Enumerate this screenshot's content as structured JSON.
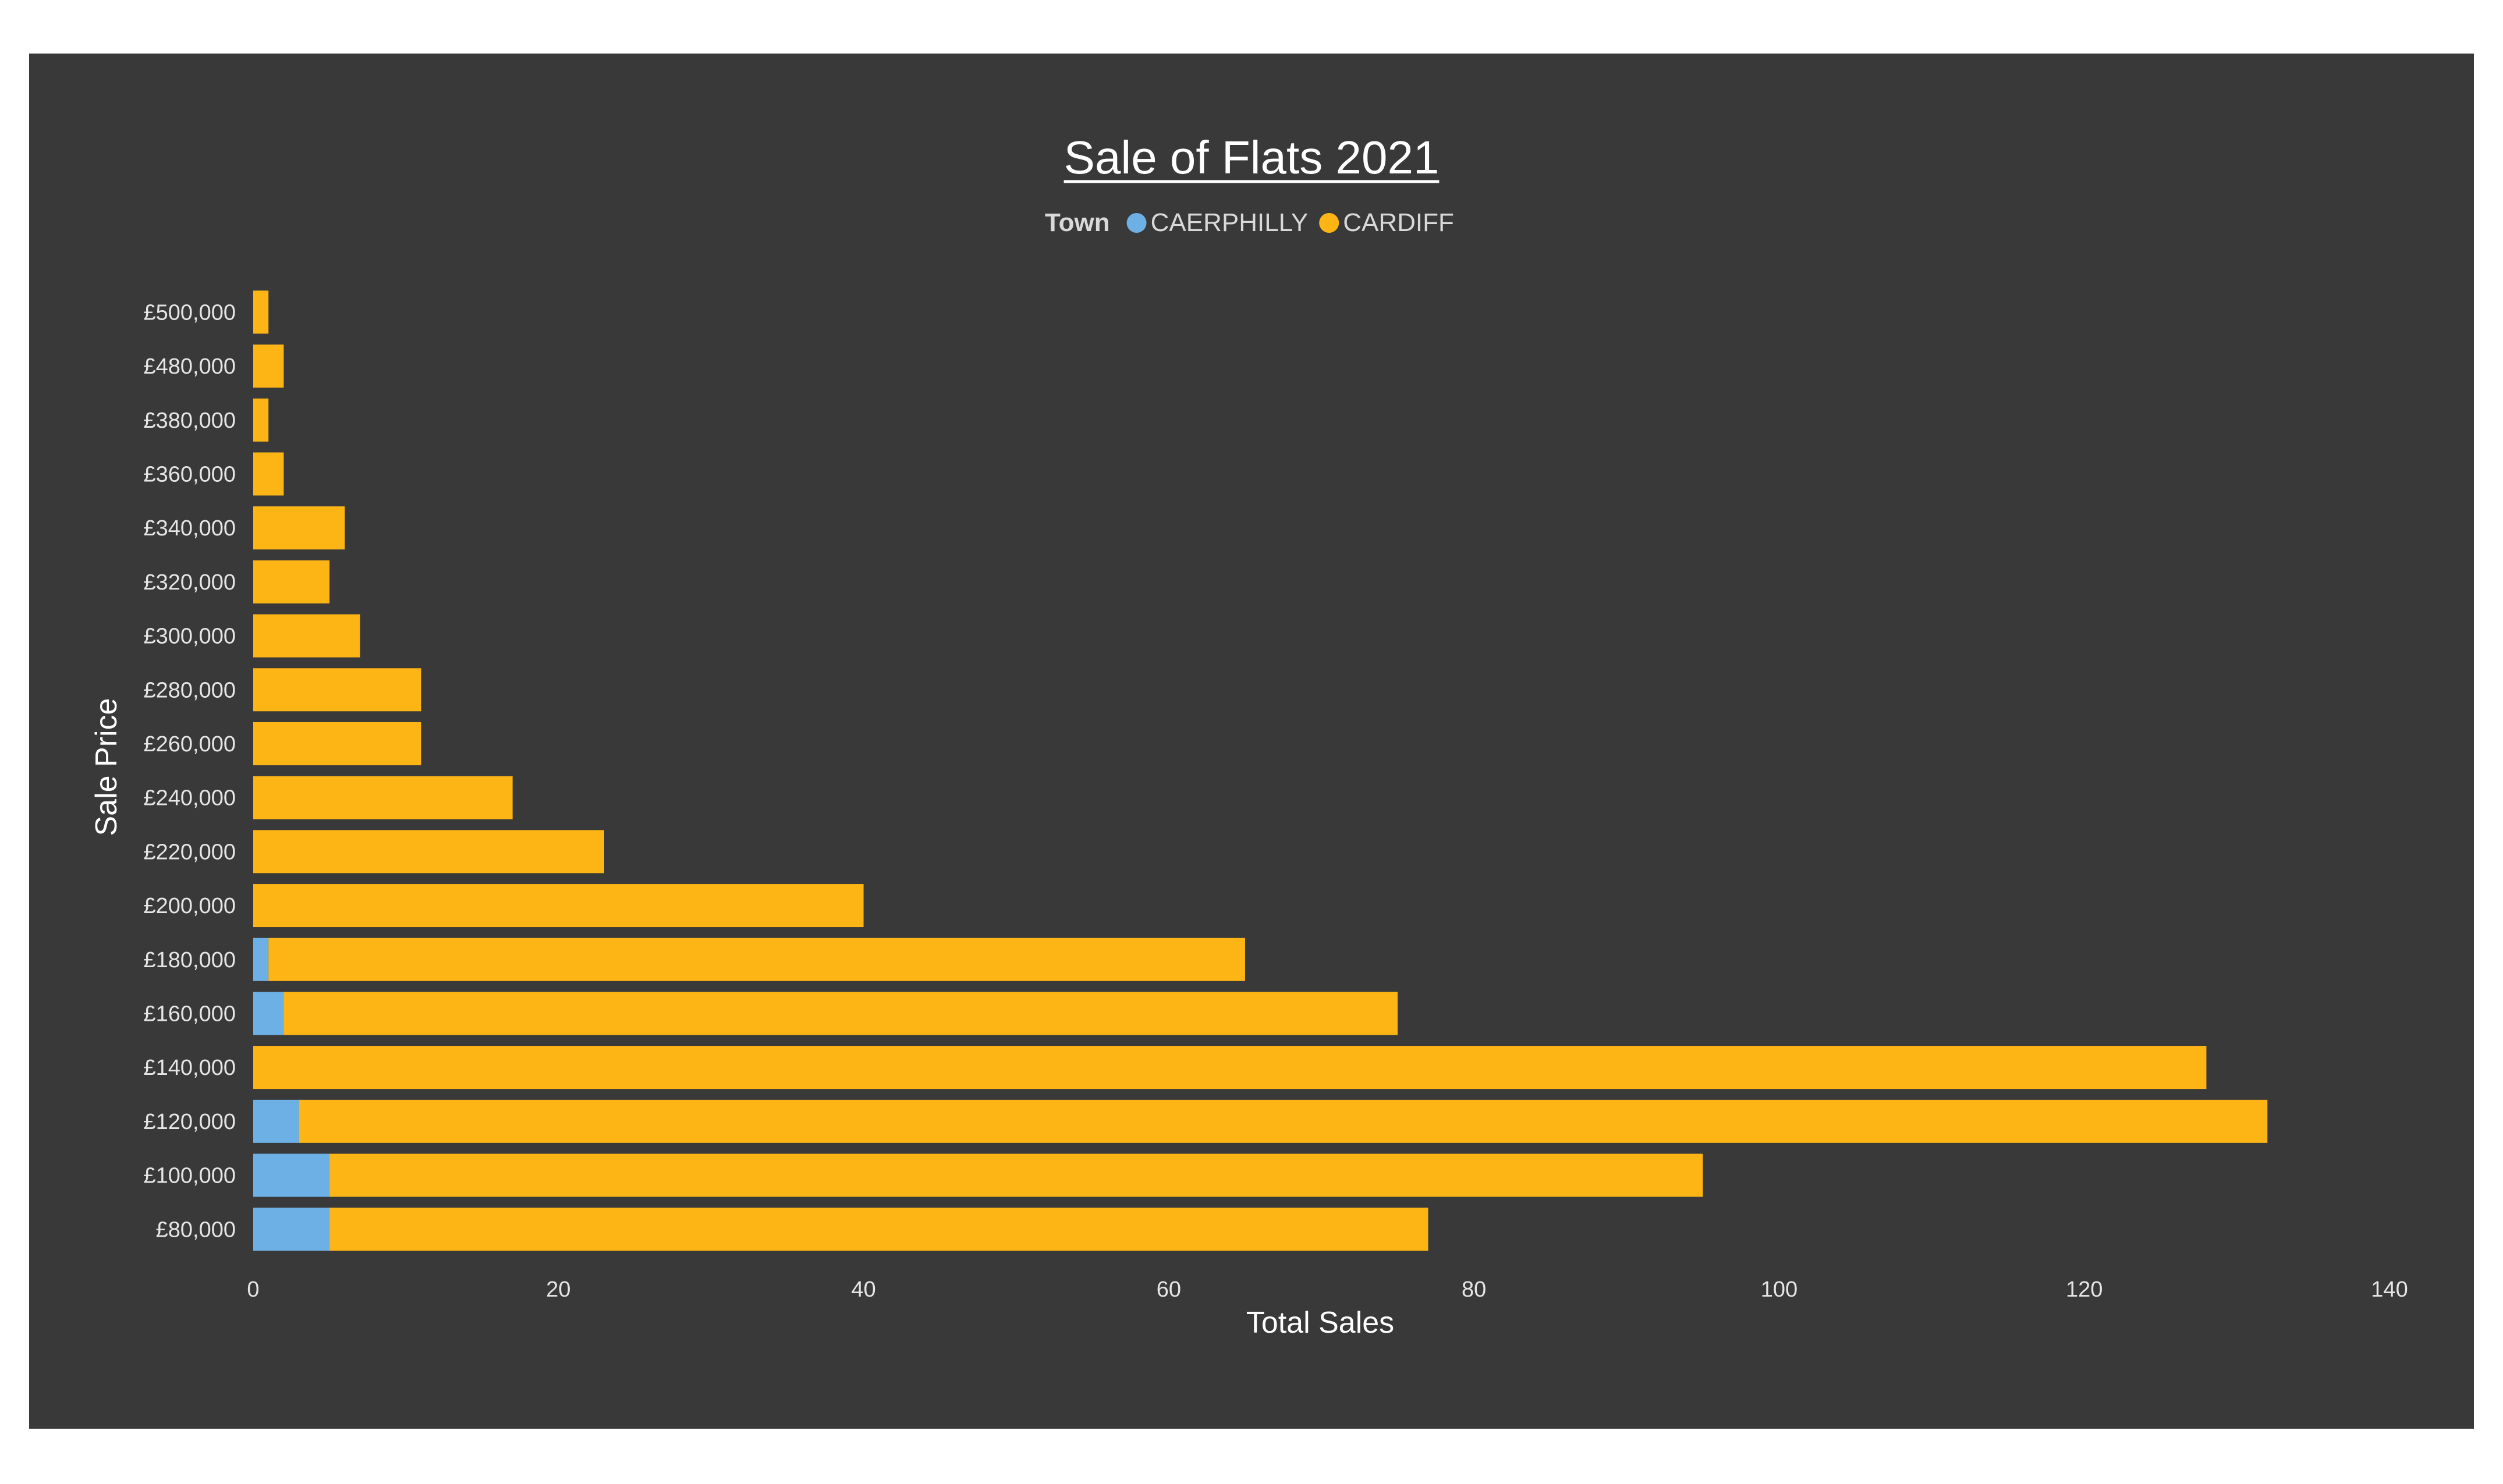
{
  "chart_data": {
    "type": "bar",
    "orientation": "horizontal",
    "stacked": true,
    "title": "Sale of Flats 2021",
    "xlabel": "Total Sales",
    "ylabel": "Sale Price",
    "xlim": [
      0,
      140
    ],
    "x_ticks": [
      "0",
      "20",
      "40",
      "60",
      "80",
      "100",
      "120",
      "140"
    ],
    "x_tick_values": [
      0,
      20,
      40,
      60,
      80,
      100,
      120,
      140
    ],
    "grid": false,
    "legend": {
      "title": "Town",
      "placement": "top-center"
    },
    "categories": [
      "£500,000",
      "£480,000",
      "£380,000",
      "£360,000",
      "£340,000",
      "£320,000",
      "£300,000",
      "£280,000",
      "£260,000",
      "£240,000",
      "£220,000",
      "£200,000",
      "£180,000",
      "£160,000",
      "£140,000",
      "£120,000",
      "£100,000",
      "£80,000"
    ],
    "series": [
      {
        "name": "CAERPHILLY",
        "color": "#6cb0e6",
        "values": [
          0,
          0,
          0,
          0,
          0,
          0,
          0,
          0,
          0,
          0,
          0,
          0,
          1,
          2,
          0,
          3,
          5,
          5
        ]
      },
      {
        "name": "CARDIFF",
        "color": "#fcb515",
        "values": [
          1,
          2,
          1,
          2,
          6,
          5,
          7,
          11,
          11,
          17,
          23,
          40,
          64,
          73,
          128,
          129,
          90,
          72
        ]
      }
    ]
  },
  "colors": {
    "panel_background": "#393939",
    "page_background": "#ffffff",
    "text": "#ffffff"
  }
}
